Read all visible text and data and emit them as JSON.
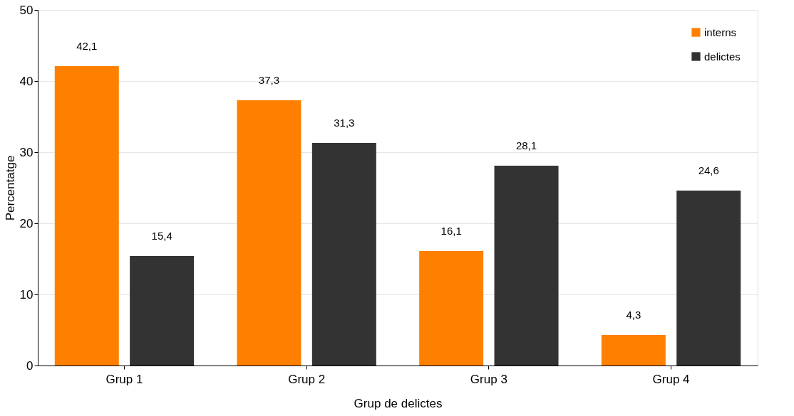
{
  "chart_data": {
    "type": "bar",
    "xlabel": "Grup de delictes",
    "ylabel": "Percentatge",
    "categories": [
      "Grup 1",
      "Grup 2",
      "Grup 3",
      "Grup 4"
    ],
    "series": [
      {
        "name": "interns",
        "color": "#ff8000",
        "values": [
          42.1,
          37.3,
          16.1,
          4.3
        ],
        "value_labels": [
          "42,1",
          "37,3",
          "16,1",
          "4,3"
        ]
      },
      {
        "name": "delictes",
        "color": "#333333",
        "values": [
          15.4,
          31.3,
          28.1,
          24.6
        ],
        "value_labels": [
          "15,4",
          "31,3",
          "28,1",
          "24,6"
        ]
      }
    ],
    "ylim": [
      0,
      50
    ],
    "yticks": [
      0,
      10,
      20,
      30,
      40,
      50
    ],
    "grid": "y",
    "legend": "top right"
  }
}
